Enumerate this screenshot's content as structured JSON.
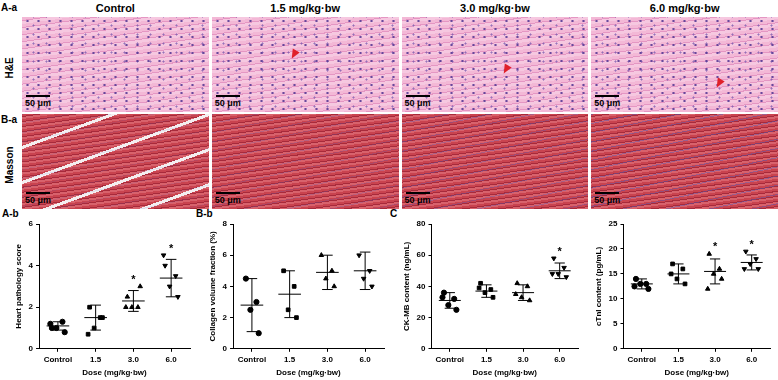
{
  "image_grid": {
    "columns": [
      "Control",
      "1.5 mg/kg·bw",
      "3.0 mg/kg·bw",
      "6.0 mg/kg·bw"
    ],
    "rows": [
      {
        "panel": "A-a",
        "stain": "H&E"
      },
      {
        "panel": "B-a",
        "stain": "Masson"
      }
    ],
    "scale_bar": "50 μm"
  },
  "chart_data": [
    {
      "panel": "A-b",
      "type": "scatter",
      "x_label": "Dose (mg/kg·bw)",
      "y_label": "Heart pathology score",
      "categories": [
        "Control",
        "1.5",
        "3.0",
        "6.0"
      ],
      "color": "#000000",
      "grid": false,
      "ylim": [
        0,
        6
      ],
      "yticks": [
        0,
        2,
        4,
        6
      ],
      "groups": [
        {
          "marker": "circle",
          "points": [
            1.0,
            1.3,
            1.0,
            0.8,
            1.2
          ],
          "mean": 1.1,
          "sd": 0.2,
          "annotation": null
        },
        {
          "marker": "square",
          "points": [
            2.0,
            1.5,
            1.0,
            1.5,
            0.7
          ],
          "mean": 1.5,
          "sd": 0.6,
          "annotation": null
        },
        {
          "marker": "triangle",
          "points": [
            2.5,
            2.0,
            2.0,
            3.0,
            2.0
          ],
          "mean": 2.3,
          "sd": 0.5,
          "annotation": "*"
        },
        {
          "marker": "triangle-down",
          "points": [
            4.0,
            3.5,
            3.0,
            2.5,
            4.5
          ],
          "mean": 3.4,
          "sd": 0.9,
          "annotation": "*"
        }
      ]
    },
    {
      "panel": "B-b",
      "type": "scatter",
      "x_label": "Dose (mg/kg·bw)",
      "y_label": "Collagen volume fraction (%)",
      "categories": [
        "Control",
        "1.5",
        "3.0",
        "6.0"
      ],
      "color": "#000000",
      "grid": false,
      "ylim": [
        0,
        8
      ],
      "yticks": [
        0,
        2,
        4,
        6,
        8
      ],
      "groups": [
        {
          "marker": "circle",
          "points": [
            4.5,
            3.0,
            2.5,
            1.0
          ],
          "mean": 2.8,
          "sd": 1.7,
          "annotation": null
        },
        {
          "marker": "square",
          "points": [
            5.0,
            4.0,
            2.5,
            2.0
          ],
          "mean": 3.5,
          "sd": 1.5,
          "annotation": null
        },
        {
          "marker": "triangle",
          "points": [
            6.0,
            5.0,
            4.5,
            4.0
          ],
          "mean": 4.9,
          "sd": 1.1,
          "annotation": null
        },
        {
          "marker": "triangle-down",
          "points": [
            6.0,
            5.0,
            4.5,
            4.0
          ],
          "mean": 5.0,
          "sd": 1.2,
          "annotation": null
        }
      ]
    },
    {
      "panel": "C",
      "type": "scatter",
      "x_label": "Dose (mg/kg·bw)",
      "y_label": "CK-MB content (ng/mL)",
      "categories": [
        "Control",
        "1.5",
        "3.0",
        "6.0"
      ],
      "color": "#000000",
      "grid": false,
      "ylim": [
        0,
        80
      ],
      "yticks": [
        0,
        20,
        40,
        60,
        80
      ],
      "groups": [
        {
          "marker": "circle",
          "points": [
            36,
            32,
            28,
            25,
            33
          ],
          "mean": 31,
          "sd": 5,
          "annotation": null
        },
        {
          "marker": "square",
          "points": [
            42,
            38,
            36,
            33,
            39
          ],
          "mean": 37,
          "sd": 4,
          "annotation": null
        },
        {
          "marker": "triangle",
          "points": [
            42,
            40,
            33,
            31,
            35
          ],
          "mean": 36,
          "sd": 5,
          "annotation": null
        },
        {
          "marker": "triangle-down",
          "points": [
            58,
            52,
            48,
            46,
            48
          ],
          "mean": 50,
          "sd": 5,
          "annotation": "*"
        }
      ]
    },
    {
      "type": "scatter",
      "x_label": "Dose (mg/kg·bw)",
      "y_label": "cTnI content (pg/mL)",
      "categories": [
        "Control",
        "1.5",
        "3.0",
        "6.0"
      ],
      "color": "#000000",
      "grid": false,
      "ylim": [
        0,
        25
      ],
      "yticks": [
        0,
        5,
        10,
        15,
        20,
        25
      ],
      "groups": [
        {
          "marker": "circle",
          "points": [
            14,
            13,
            13,
            12,
            12.5
          ],
          "mean": 13,
          "sd": 1,
          "annotation": null
        },
        {
          "marker": "square",
          "points": [
            17,
            16,
            14,
            13,
            15
          ],
          "mean": 15,
          "sd": 2,
          "annotation": null
        },
        {
          "marker": "triangle",
          "points": [
            19,
            16,
            15,
            14,
            12
          ],
          "mean": 15.5,
          "sd": 2.5,
          "annotation": "*"
        },
        {
          "marker": "triangle-down",
          "points": [
            19.5,
            18,
            17,
            16,
            16
          ],
          "mean": 17.3,
          "sd": 1.5,
          "annotation": "*"
        }
      ]
    }
  ]
}
